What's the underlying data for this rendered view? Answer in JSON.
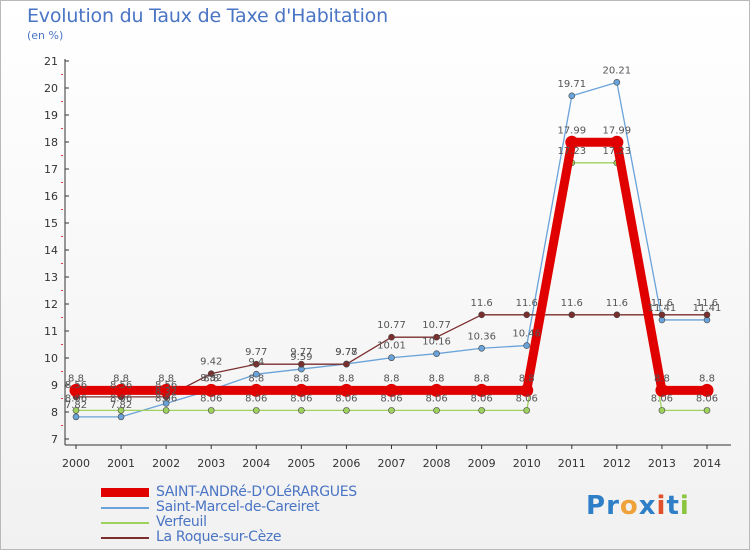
{
  "header": {
    "title": "Evolution du Taux de Taxe d'Habitation",
    "subtitle": "(en %)"
  },
  "brand": {
    "letters": [
      {
        "ch": "P",
        "color": "#2f7fc8"
      },
      {
        "ch": "r",
        "color": "#2f7fc8"
      },
      {
        "ch": "o",
        "color": "#f0a23a"
      },
      {
        "ch": "x",
        "color": "#2f7fc8"
      },
      {
        "ch": "i",
        "color": "#e0502a"
      },
      {
        "ch": "t",
        "color": "#2f7fc8"
      },
      {
        "ch": "i",
        "color": "#8bc53f"
      }
    ]
  },
  "chart_data": {
    "type": "line",
    "x": [
      2000,
      2001,
      2002,
      2003,
      2004,
      2005,
      2006,
      2007,
      2008,
      2009,
      2010,
      2011,
      2012,
      2013,
      2014
    ],
    "ylim": [
      7,
      21
    ],
    "yticks": [
      7,
      8,
      9,
      10,
      11,
      12,
      13,
      14,
      15,
      16,
      17,
      18,
      19,
      20,
      21
    ],
    "grid": false,
    "legend_position": "bottom-left",
    "series": [
      {
        "name": "SAINT-ANDRé-D'OLéRARGUES",
        "color": "#e00000",
        "values": [
          8.8,
          8.8,
          8.8,
          8.8,
          8.8,
          8.8,
          8.8,
          8.8,
          8.8,
          8.8,
          8.8,
          17.99,
          17.99,
          8.8,
          8.8
        ],
        "labels": [
          "8.8",
          "8.8",
          "8.8",
          "8.8",
          "8.8",
          "8.8",
          "8.8",
          "8.8",
          "8.8",
          "8.8",
          "8.8",
          "17.99",
          "17.99",
          "8.8",
          "8.8"
        ]
      },
      {
        "name": "Saint-Marcel-de-Careiret",
        "color": "#6aa3d9",
        "values": [
          7.82,
          7.82,
          8.32,
          8.82,
          9.4,
          9.59,
          9.78,
          10.01,
          10.16,
          10.36,
          10.46,
          19.71,
          20.21,
          11.41,
          11.41
        ],
        "labels": [
          "7.82",
          "7.82",
          "8.32",
          "8.82",
          "9.4",
          "9.59",
          "9.78",
          "10.01",
          "10.16",
          "10.36",
          "10.46",
          "19.71",
          "20.21",
          "11.41",
          "11.41"
        ]
      },
      {
        "name": "Verfeuil",
        "color": "#9ed15e",
        "values": [
          8.06,
          8.06,
          8.06,
          8.06,
          8.06,
          8.06,
          8.06,
          8.06,
          8.06,
          8.06,
          8.06,
          17.23,
          17.23,
          8.06,
          8.06
        ],
        "labels": [
          "8.06",
          "8.06",
          "8.06",
          "8.06",
          "8.06",
          "8.06",
          "8.06",
          "8.06",
          "8.06",
          "8.06",
          "8.06",
          "17.23",
          "17.23",
          "8.06",
          "8.06"
        ]
      },
      {
        "name": "La Roque-sur-Cèze",
        "color": "#7b2e2e",
        "values": [
          8.56,
          8.56,
          8.56,
          9.42,
          9.77,
          9.77,
          9.77,
          10.77,
          10.77,
          11.6,
          11.6,
          11.6,
          11.6,
          11.6,
          11.6
        ],
        "labels": [
          "8.56",
          "8.56",
          "8.56",
          "9.42",
          "9.77",
          "9.77",
          "9.77",
          "10.77",
          "10.77",
          "11.6",
          "11.6",
          "11.6",
          "11.6",
          "11.6",
          "11.6"
        ]
      }
    ]
  }
}
